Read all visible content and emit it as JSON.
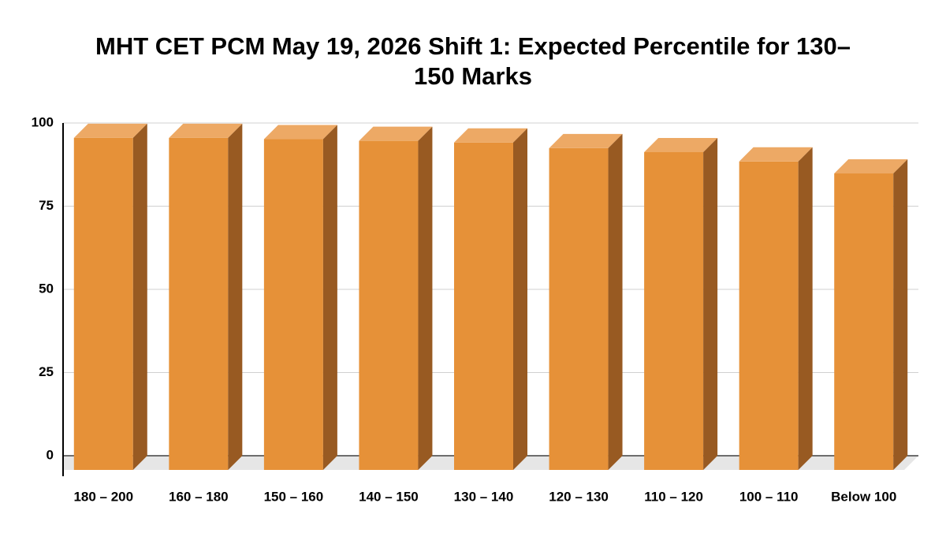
{
  "chart_data": {
    "type": "bar3d",
    "title": "MHT CET PCM May 19, 2026 Shift 1: Expected Percentile for 130–150 Marks",
    "categories": [
      "180 – 200",
      "160 – 180",
      "150 – 160",
      "140 – 150",
      "130 – 140",
      "120 – 130",
      "110 – 120",
      "100 – 110",
      "Below 100"
    ],
    "values": [
      99.8,
      99.8,
      99.4,
      98.9,
      98.4,
      96.7,
      95.5,
      92.7,
      89.1
    ],
    "color": "#e69138",
    "ylim": [
      0,
      100
    ],
    "yticks": [
      0,
      25,
      50,
      75,
      100
    ],
    "grid": true
  }
}
